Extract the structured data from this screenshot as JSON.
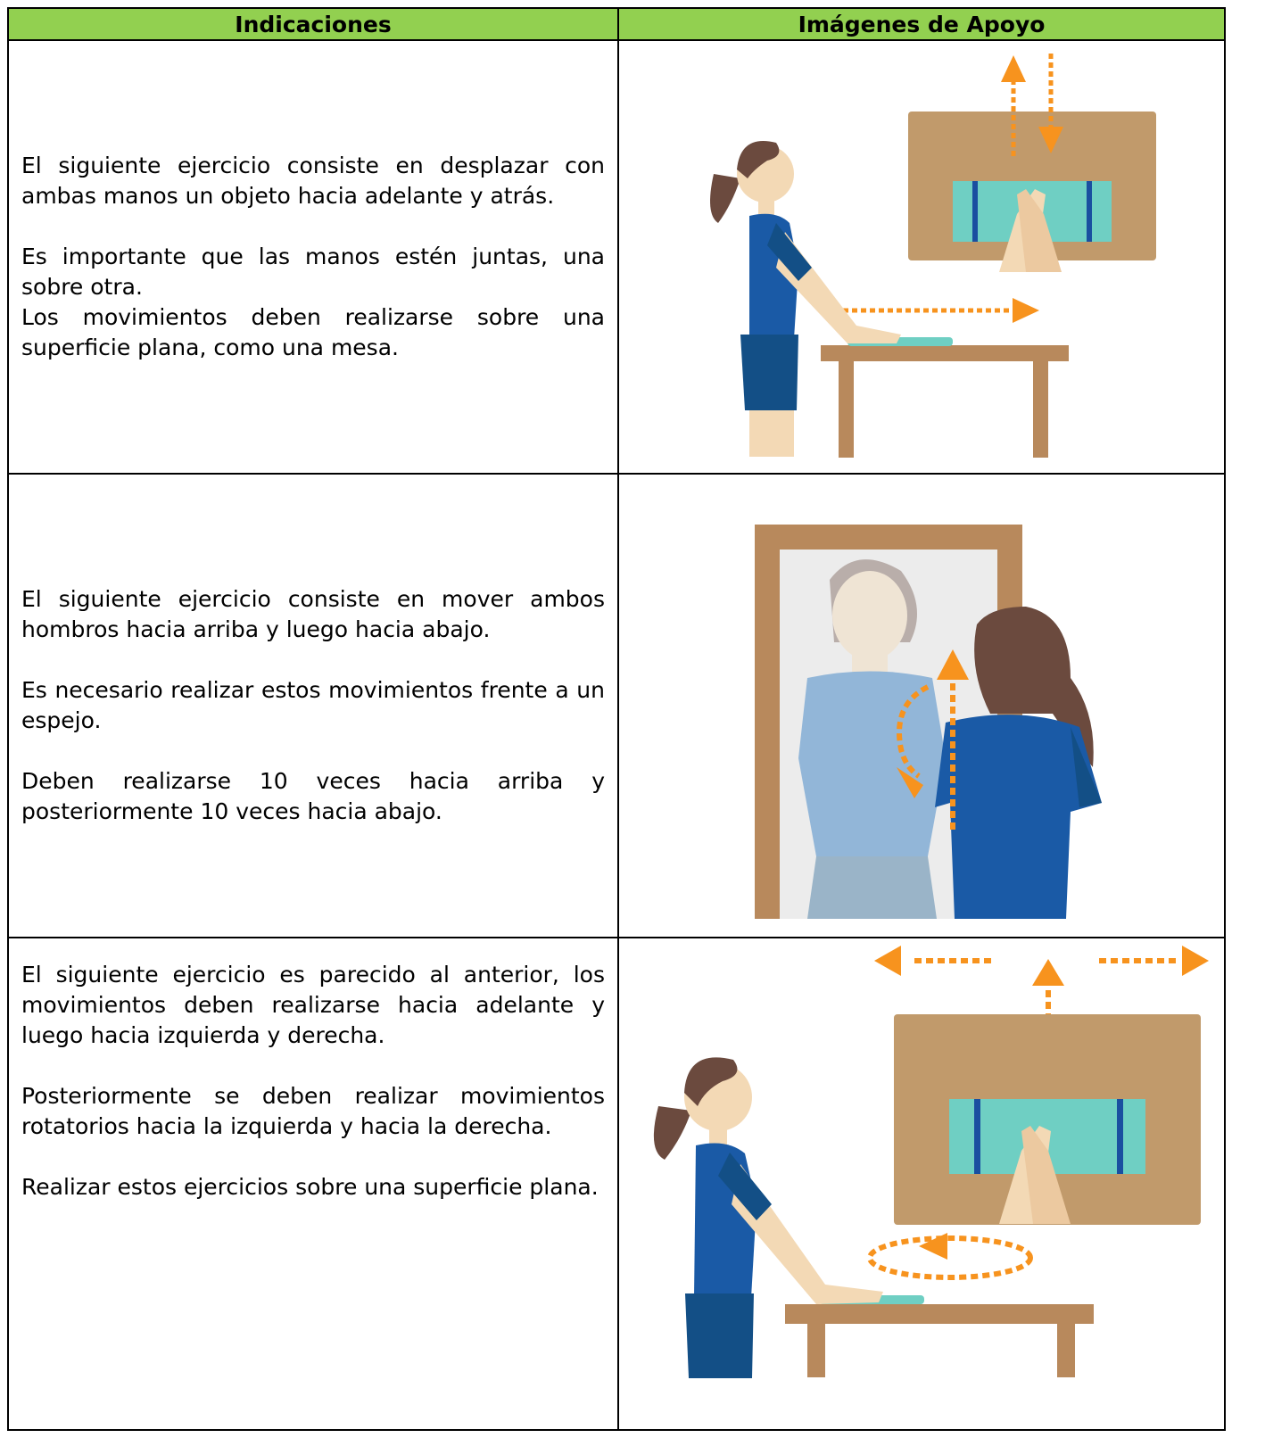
{
  "table": {
    "header": [
      "Indicaciones",
      "Imágenes de Apoyo"
    ],
    "rows": [
      {
        "paragraphs": [
          "El siguiente ejercicio consiste en desplazar con ambas manos un objeto hacia adelante y atrás.",
          "Es importante que las manos estén juntas, una sobre otra.",
          "Los movimientos deben realizarse sobre una superficie plana, como una mesa."
        ]
      },
      {
        "paragraphs": [
          "El siguiente ejercicio consiste en mover ambos hombros hacia arriba y luego hacia abajo.",
          "Es necesario realizar estos movimientos frente a un espejo.",
          "Deben realizarse 10 veces hacia arriba y posteriormente 10 veces hacia abajo."
        ]
      },
      {
        "paragraphs": [
          "El siguiente ejercicio es parecido al anterior, los movimientos deben realizarse hacia adelante y luego hacia izquierda y derecha.",
          "Posteriormente se deben realizar movimientos rotatorios hacia la izquierda y hacia la derecha.",
          "Realizar estos ejercicios sobre una superficie plana."
        ]
      }
    ]
  }
}
